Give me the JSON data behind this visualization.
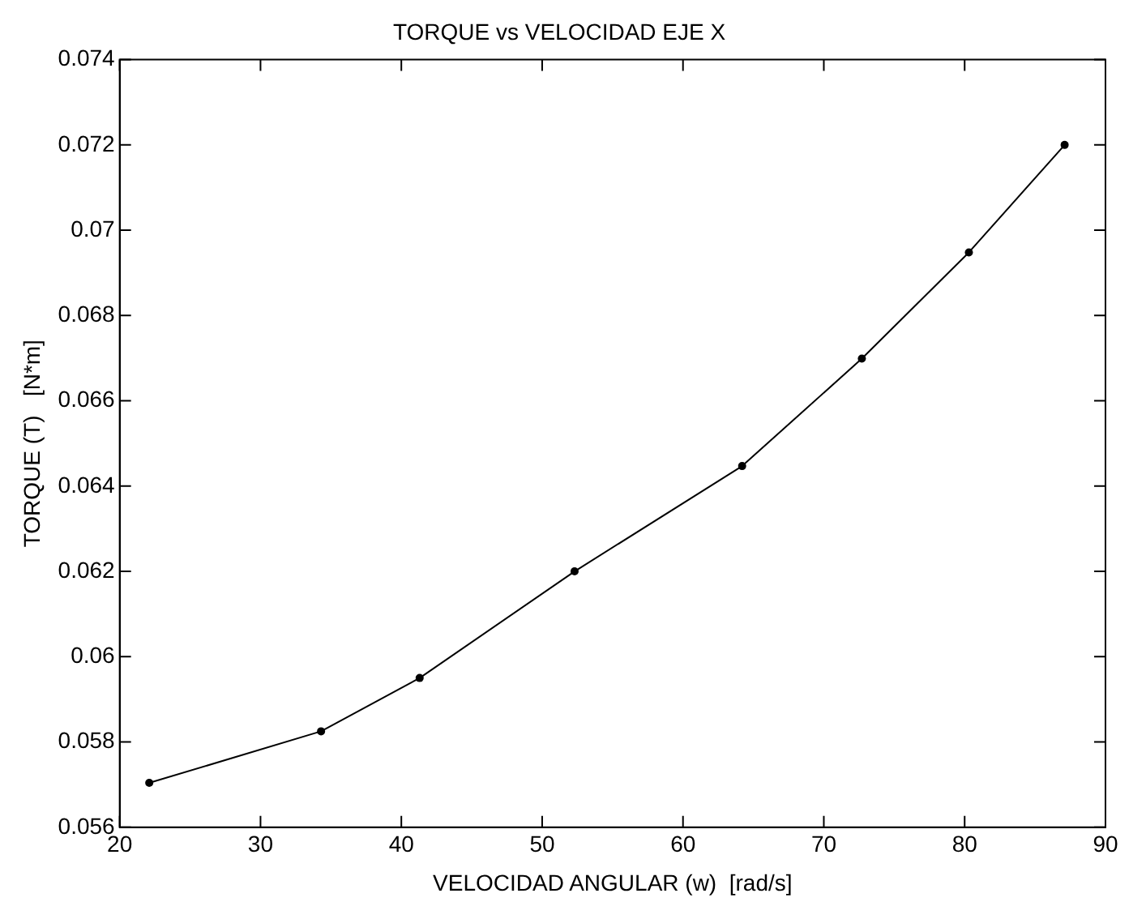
{
  "chart_data": {
    "type": "line",
    "title": "TORQUE vs VELOCIDAD EJE X",
    "xlabel": "VELOCIDAD ANGULAR (w)  [rad/s]",
    "ylabel": "TORQUE (T)   [N*m]",
    "x": [
      22.1,
      34.3,
      41.3,
      52.3,
      64.2,
      72.7,
      80.3,
      87.1
    ],
    "series": [
      {
        "color": "#000000",
        "values": [
          0.05704,
          0.05825,
          0.0595,
          0.062,
          0.06447,
          0.06699,
          0.06948,
          0.072
        ]
      }
    ],
    "xlim": [
      20,
      90
    ],
    "xticks": [
      20,
      30,
      40,
      50,
      60,
      70,
      80,
      90
    ],
    "ylim": [
      0.056,
      0.074
    ],
    "yticks": [
      0.056,
      0.058,
      0.06,
      0.062,
      0.064,
      0.066,
      0.068,
      0.07,
      0.072,
      0.074
    ],
    "grid": false,
    "legend": false,
    "marker": "circle",
    "line_style": "solid"
  }
}
